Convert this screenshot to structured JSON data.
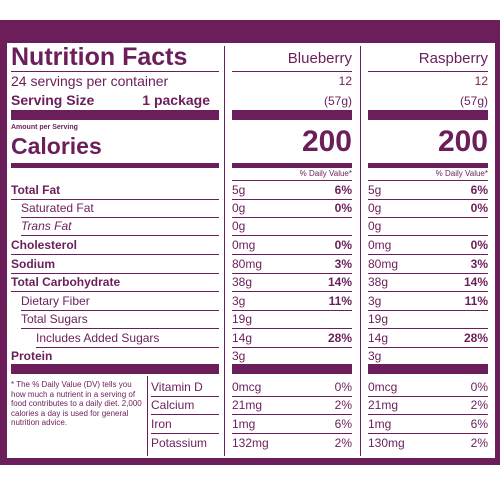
{
  "header": {
    "title": "Nutrition Facts",
    "servings": "24 servings per container",
    "serving_size_label": "Serving Size",
    "serving_size_value": "1 package",
    "amount_per_serving": "Amount per Serving",
    "calories_label": "Calories"
  },
  "columns": [
    {
      "name": "Blueberry",
      "servings": "12",
      "serving_size": "(57g)",
      "calories": "200",
      "dv_header": "% Daily Value*",
      "nutrients": [
        {
          "amount": "5g",
          "dv": "6%"
        },
        {
          "amount": "0g",
          "dv": "0%"
        },
        {
          "amount": "0g",
          "dv": ""
        },
        {
          "amount": "0mg",
          "dv": "0%"
        },
        {
          "amount": "80mg",
          "dv": "3%"
        },
        {
          "amount": "38g",
          "dv": "14%"
        },
        {
          "amount": "3g",
          "dv": "11%"
        },
        {
          "amount": "19g",
          "dv": ""
        },
        {
          "amount": "14g",
          "dv": "28%"
        },
        {
          "amount": "3g",
          "dv": ""
        }
      ],
      "vitamins": [
        {
          "amount": "0mcg",
          "dv": "0%"
        },
        {
          "amount": "21mg",
          "dv": "2%"
        },
        {
          "amount": "1mg",
          "dv": "6%"
        },
        {
          "amount": "132mg",
          "dv": "2%"
        }
      ]
    },
    {
      "name": "Raspberry",
      "servings": "12",
      "serving_size": "(57g)",
      "calories": "200",
      "dv_header": "% Daily Value*",
      "nutrients": [
        {
          "amount": "5g",
          "dv": "6%"
        },
        {
          "amount": "0g",
          "dv": "0%"
        },
        {
          "amount": "0g",
          "dv": ""
        },
        {
          "amount": "0mg",
          "dv": "0%"
        },
        {
          "amount": "80mg",
          "dv": "3%"
        },
        {
          "amount": "38g",
          "dv": "14%"
        },
        {
          "amount": "3g",
          "dv": "11%"
        },
        {
          "amount": "19g",
          "dv": ""
        },
        {
          "amount": "14g",
          "dv": "28%"
        },
        {
          "amount": "3g",
          "dv": ""
        }
      ],
      "vitamins": [
        {
          "amount": "0mcg",
          "dv": "0%"
        },
        {
          "amount": "21mg",
          "dv": "2%"
        },
        {
          "amount": "1mg",
          "dv": "6%"
        },
        {
          "amount": "130mg",
          "dv": "2%"
        }
      ]
    }
  ],
  "nutrients": [
    {
      "label": "Total Fat"
    },
    {
      "label": "Saturated Fat"
    },
    {
      "label": "Trans Fat"
    },
    {
      "label": "Cholesterol"
    },
    {
      "label": "Sodium"
    },
    {
      "label": "Total Carbohydrate"
    },
    {
      "label": "Dietary Fiber"
    },
    {
      "label": "Total Sugars"
    },
    {
      "label": "Includes Added Sugars"
    },
    {
      "label": "Protein"
    }
  ],
  "vitamins": [
    {
      "label": "Vitamin D"
    },
    {
      "label": "Calcium"
    },
    {
      "label": "Iron"
    },
    {
      "label": "Potassium"
    }
  ],
  "footnote": "* The % Daily Value (DV) tells you how much a nutrient in a serving of food contributes to a daily diet. 2,000 calories a day is used for general nutrition advice.",
  "colors": {
    "label_purple": "#6b1e5a",
    "background": "#ffffff"
  }
}
